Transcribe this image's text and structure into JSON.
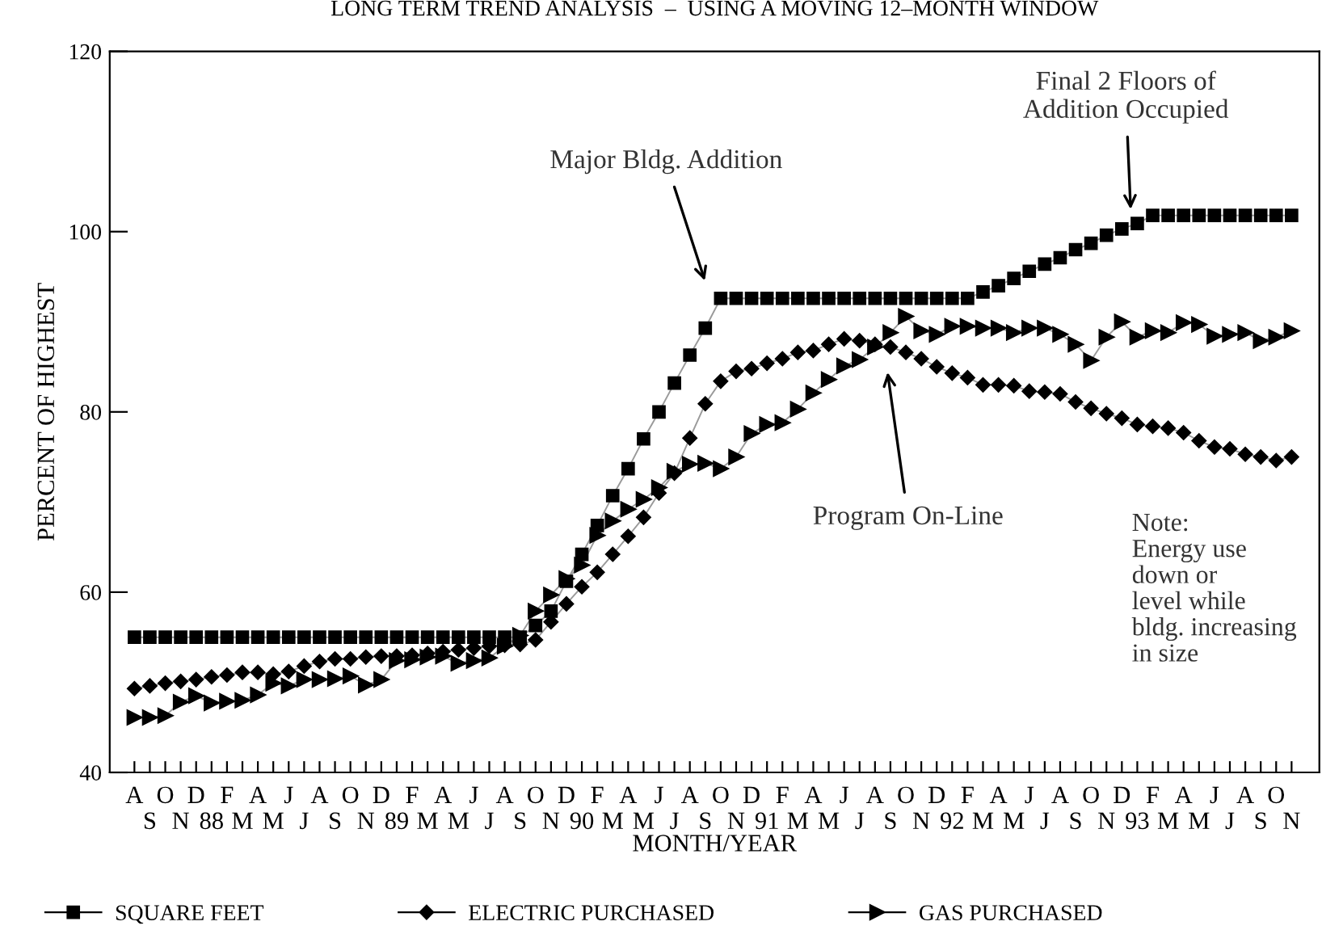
{
  "chart_data": {
    "type": "line",
    "title": "LONG TERM TREND ANALYSIS  –  USING A MOVING 12–MONTH WINDOW",
    "xlabel": "MONTH/YEAR",
    "ylabel": "PERCENT OF HIGHEST",
    "categories": [
      "A",
      "S",
      "O",
      "N",
      "D",
      "88",
      "F",
      "M",
      "A",
      "M",
      "J",
      "J",
      "A",
      "S",
      "O",
      "N",
      "D",
      "89",
      "F",
      "M",
      "A",
      "M",
      "J",
      "J",
      "A",
      "S",
      "O",
      "N",
      "D",
      "90",
      "F",
      "M",
      "A",
      "M",
      "J",
      "J",
      "A",
      "S",
      "O",
      "N",
      "D",
      "91",
      "F",
      "M",
      "A",
      "M",
      "J",
      "J",
      "A",
      "S",
      "O",
      "N",
      "D",
      "92",
      "F",
      "M",
      "A",
      "M",
      "J",
      "J",
      "A",
      "S",
      "O",
      "N",
      "D",
      "93",
      "F",
      "M",
      "A",
      "M",
      "J",
      "J",
      "A",
      "S",
      "O",
      "N"
    ],
    "series": [
      {
        "name": "SQUARE FEET",
        "color": "#000000",
        "marker": "square",
        "values": [
          55,
          55,
          55,
          55,
          55,
          55,
          55,
          55,
          55,
          55,
          55,
          55,
          55,
          55,
          55,
          55,
          55,
          55,
          55,
          55,
          55,
          55,
          55,
          55,
          55,
          55,
          56.3,
          57.9,
          61.2,
          64.2,
          67.4,
          70.7,
          73.7,
          77.0,
          80.0,
          83.2,
          86.3,
          89.3,
          92.6,
          92.6,
          92.6,
          92.6,
          92.6,
          92.6,
          92.6,
          92.6,
          92.6,
          92.6,
          92.6,
          92.6,
          92.6,
          92.6,
          92.6,
          92.6,
          92.6,
          93.3,
          94.0,
          94.8,
          95.6,
          96.4,
          97.1,
          98.0,
          98.7,
          99.6,
          100.3,
          100.9,
          101.8,
          101.8,
          101.8,
          101.8,
          101.8,
          101.8,
          101.8,
          101.8,
          101.8,
          101.8
        ]
      },
      {
        "name": "ELECTRIC PURCHASED",
        "color": "#000000",
        "marker": "diamond",
        "values": [
          49.3,
          49.6,
          49.9,
          50.1,
          50.3,
          50.6,
          50.8,
          51.1,
          51.1,
          50.9,
          51.2,
          51.8,
          52.3,
          52.6,
          52.6,
          52.8,
          52.9,
          52.9,
          53.0,
          53.2,
          53.4,
          53.6,
          53.8,
          54.0,
          54.1,
          54.2,
          54.7,
          56.7,
          58.7,
          60.6,
          62.2,
          64.2,
          66.2,
          68.3,
          71.0,
          73.2,
          77.1,
          80.9,
          83.4,
          84.5,
          84.8,
          85.4,
          85.9,
          86.6,
          86.8,
          87.5,
          88.1,
          87.9,
          87.5,
          87.2,
          86.6,
          85.9,
          85.0,
          84.3,
          83.8,
          83.0,
          83.0,
          82.9,
          82.3,
          82.2,
          82.0,
          81.1,
          80.4,
          79.8,
          79.3,
          78.6,
          78.4,
          78.2,
          77.7,
          76.8,
          76.1,
          75.9,
          75.3,
          75.0,
          74.6,
          75.0
        ]
      },
      {
        "name": "GAS PURCHASED",
        "color": "#000000",
        "marker": "triangle",
        "values": [
          46.1,
          46.1,
          46.3,
          47.8,
          48.5,
          47.7,
          47.9,
          48.0,
          48.6,
          49.9,
          49.6,
          50.3,
          50.3,
          50.4,
          50.7,
          49.7,
          50.3,
          52.4,
          52.5,
          52.8,
          52.9,
          52.1,
          52.4,
          52.7,
          54.0,
          55.2,
          57.9,
          59.7,
          61.5,
          63.0,
          66.3,
          67.9,
          69.2,
          70.3,
          71.6,
          73.4,
          74.2,
          74.3,
          73.7,
          75.0,
          77.6,
          78.6,
          78.8,
          80.3,
          82.1,
          83.6,
          85.1,
          85.8,
          87.2,
          88.8,
          90.6,
          89.0,
          88.6,
          89.5,
          89.5,
          89.3,
          89.3,
          88.8,
          89.3,
          89.3,
          88.6,
          87.5,
          85.7,
          88.3,
          90.0,
          88.3,
          89.0,
          88.8,
          89.9,
          89.7,
          88.4,
          88.6,
          88.8,
          87.9,
          88.3,
          89.0
        ]
      }
    ],
    "ylim": [
      40,
      120
    ],
    "yticks": [
      40,
      60,
      80,
      100,
      120
    ],
    "grid": false,
    "legend": "bottom",
    "annotations": [
      "Major Bldg. Addition",
      "Final 2 Floors of\nAddition Occupied",
      "Program On-Line",
      "Note:\nEnergy use\ndown or\nlevel while\nbldg. increasing\nin size"
    ]
  }
}
